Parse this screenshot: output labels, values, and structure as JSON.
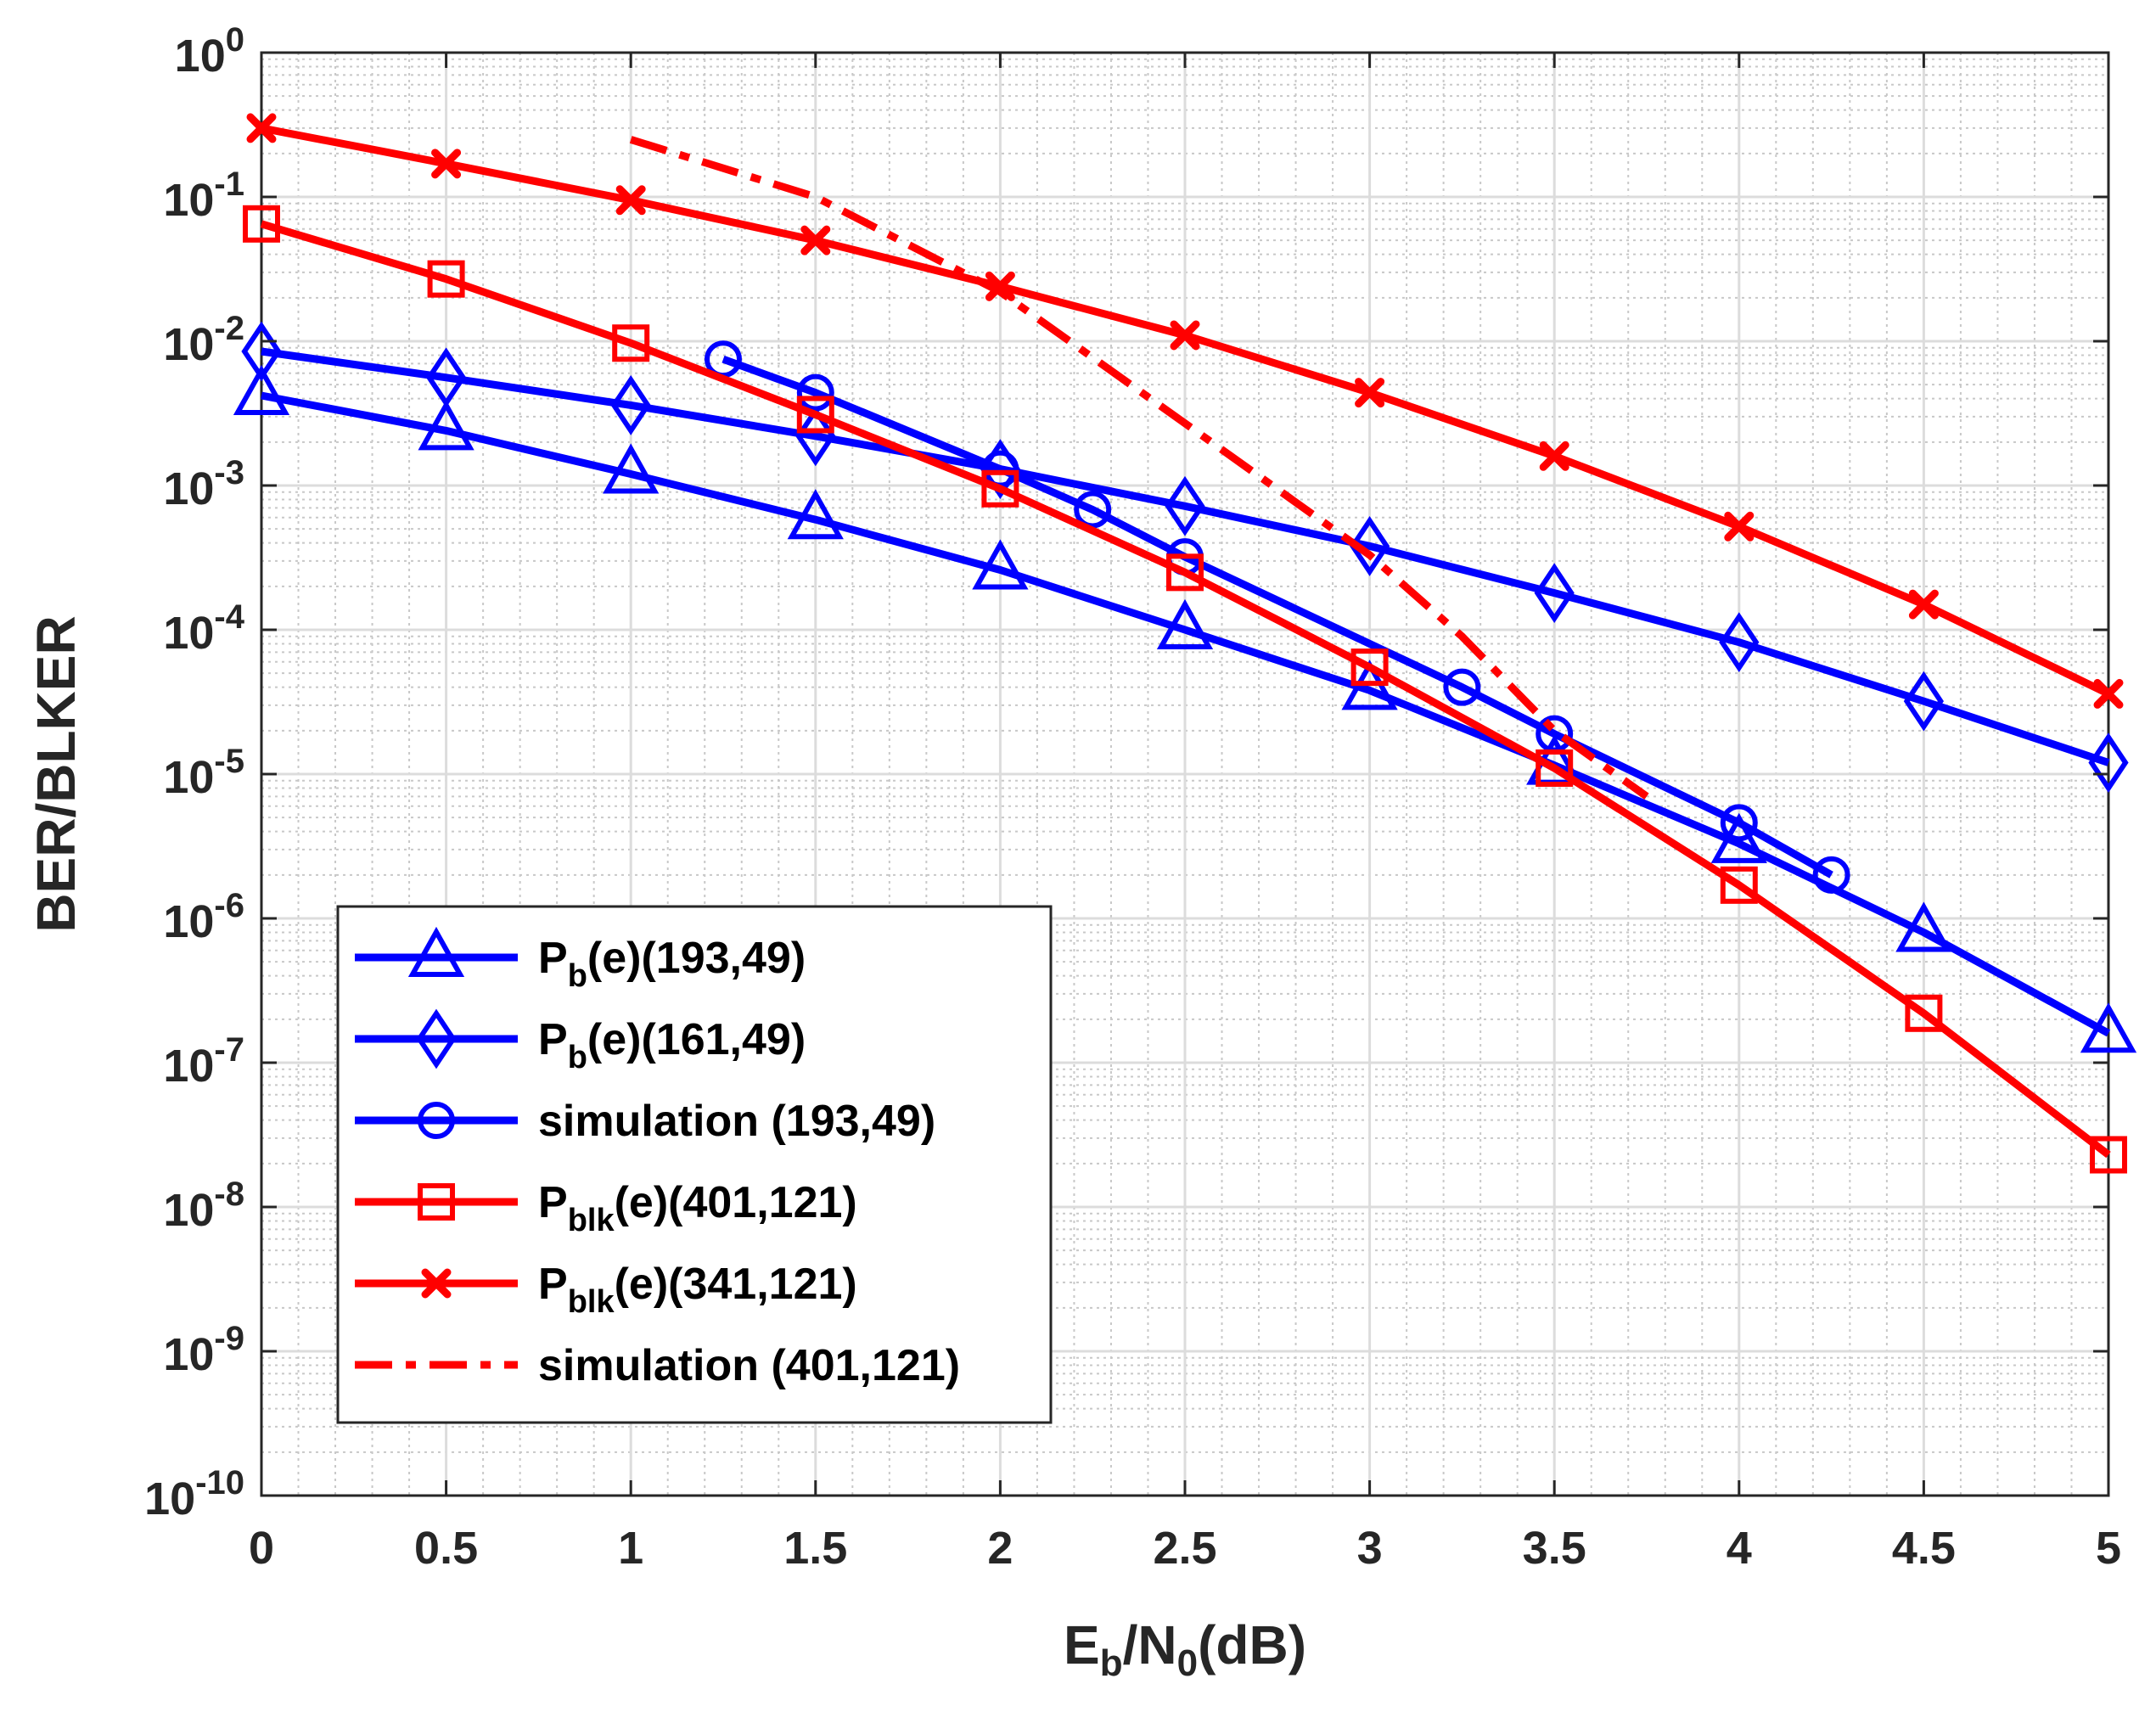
{
  "chart_data": {
    "type": "line",
    "xlabel": {
      "main": "E",
      "sub": "b",
      "mid": "/N",
      "sub2": "0",
      "tail": "(dB)"
    },
    "ylabel": "BER/BLKER",
    "xlim": [
      0,
      5
    ],
    "ylim_exponent": [
      -10,
      0
    ],
    "yscale": "log",
    "grid": true,
    "minor_grid": true,
    "legend_position": "bottom-left",
    "x_ticks": [
      "0",
      "0.5",
      "1",
      "1.5",
      "2",
      "2.5",
      "3",
      "3.5",
      "4",
      "4.5",
      "5"
    ],
    "y_tick_base": "10",
    "y_tick_exponents": [
      "0",
      "-1",
      "-2",
      "-3",
      "-4",
      "-5",
      "-6",
      "-7",
      "-8",
      "-9",
      "-10"
    ],
    "series": [
      {
        "name": "P_b(e)(193,49)",
        "legend": {
          "main": "P",
          "sub": "b",
          "tail": "(e)(193,49)"
        },
        "color": "#0000ff",
        "marker": "triangle",
        "style": "solid",
        "x": [
          0,
          0.5,
          1,
          1.5,
          2,
          2.5,
          3,
          3.5,
          4,
          4.5,
          5
        ],
        "y": [
          0.0042,
          0.0024,
          0.0012,
          0.00058,
          0.00026,
          0.0001,
          3.8e-05,
          1.15e-05,
          3.3e-06,
          8e-07,
          1.6e-07
        ]
      },
      {
        "name": "P_b(e)(161,49)",
        "legend": {
          "main": "P",
          "sub": "b",
          "tail": "(e)(161,49)"
        },
        "color": "#0000ff",
        "marker": "diamond",
        "style": "solid",
        "x": [
          0,
          0.5,
          1,
          1.5,
          2,
          2.5,
          3,
          3.5,
          4,
          4.5,
          5
        ],
        "y": [
          0.0085,
          0.0056,
          0.0036,
          0.0022,
          0.0013,
          0.00072,
          0.00038,
          0.00018,
          8.2e-05,
          3.2e-05,
          1.2e-05
        ]
      },
      {
        "name": "simulation (193,49)",
        "legend": {
          "main": "simulation (193,49)",
          "sub": "",
          "tail": ""
        },
        "color": "#0000ff",
        "marker": "circle",
        "style": "solid",
        "x": [
          1.25,
          1.5,
          2,
          2.25,
          2.5,
          3.25,
          3.5,
          4,
          4.25
        ],
        "y": [
          0.0075,
          0.0044,
          0.0013,
          0.00068,
          0.00032,
          4e-05,
          1.9e-05,
          4.6e-06,
          2e-06
        ]
      },
      {
        "name": "P_blk(e)(401,121)",
        "legend": {
          "main": "P",
          "sub": "blk",
          "tail": "(e)(401,121)"
        },
        "color": "#ff0000",
        "marker": "square",
        "style": "solid",
        "x": [
          0,
          0.5,
          1,
          1.5,
          2,
          2.5,
          3,
          3.5,
          4,
          4.5,
          5
        ],
        "y": [
          0.065,
          0.027,
          0.0097,
          0.0031,
          0.00095,
          0.00025,
          5.5e-05,
          1.1e-05,
          1.7e-06,
          2.2e-07,
          2.3e-08
        ]
      },
      {
        "name": "P_blk(e)(341,121)",
        "legend": {
          "main": "P",
          "sub": "blk",
          "tail": "(e)(341,121)"
        },
        "color": "#ff0000",
        "marker": "x",
        "style": "solid",
        "x": [
          0,
          0.5,
          1,
          1.5,
          2,
          2.5,
          3,
          3.5,
          4,
          4.5,
          5
        ],
        "y": [
          0.3,
          0.17,
          0.095,
          0.05,
          0.024,
          0.011,
          0.0044,
          0.0016,
          0.00052,
          0.00015,
          3.6e-05
        ]
      },
      {
        "name": "simulation (401,121)",
        "legend": {
          "main": "simulation (401,121)",
          "sub": "",
          "tail": ""
        },
        "color": "#ff0000",
        "marker": "none",
        "style": "dashdot",
        "x": [
          1,
          1.5,
          2,
          2.5,
          3,
          3.25,
          3.5,
          3.75
        ],
        "y": [
          0.25,
          0.1,
          0.022,
          0.0027,
          0.00033,
          9e-05,
          2e-05,
          7e-06
        ]
      }
    ]
  }
}
